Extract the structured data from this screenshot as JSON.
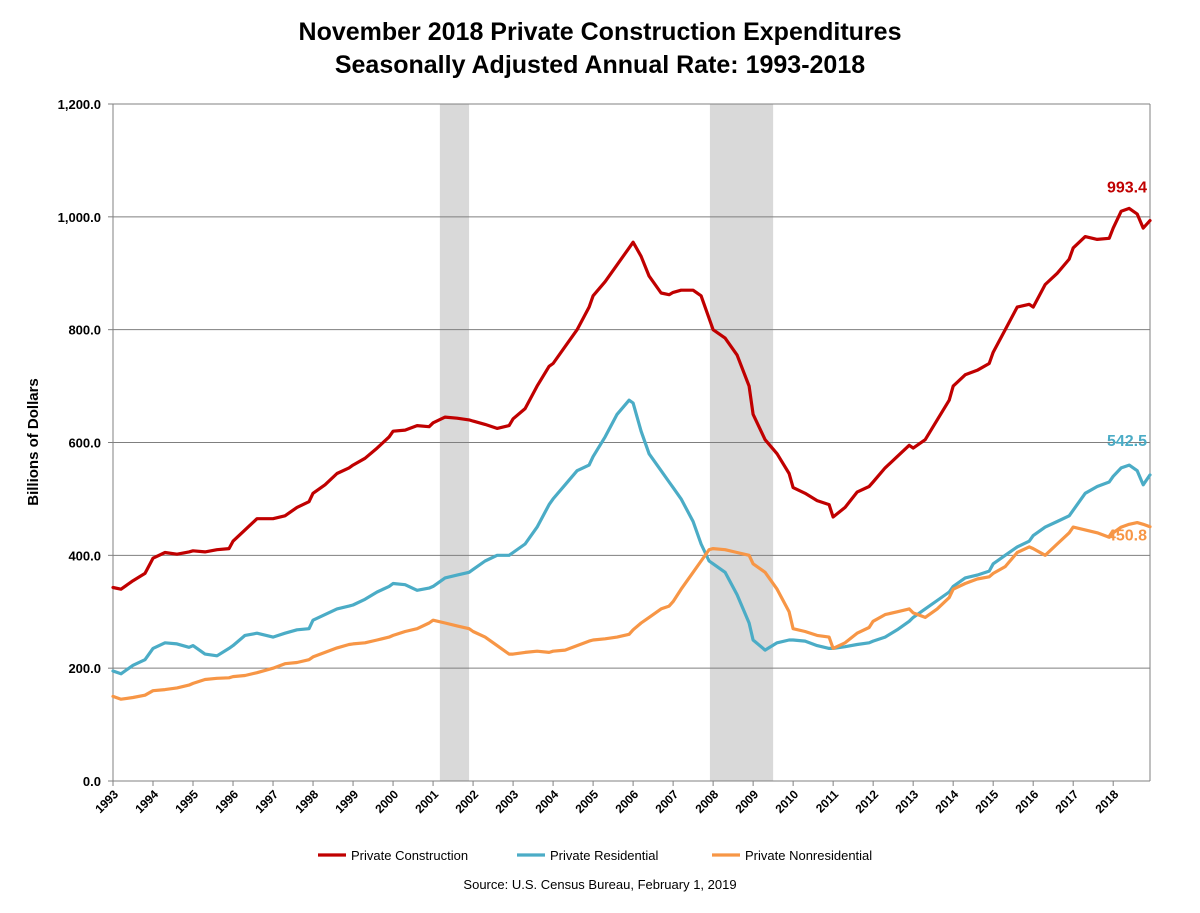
{
  "chart_data": {
    "type": "line",
    "title": "November 2018 Private Construction Expenditures",
    "subtitle": "Seasonally Adjusted Annual Rate: 1993-2018",
    "xlabel": "",
    "ylabel": "Billions of Dollars",
    "ylim": [
      0,
      1200
    ],
    "yticks": [
      "0.0",
      "200.0",
      "400.0",
      "600.0",
      "800.0",
      "1,000.0",
      "1,200.0"
    ],
    "ytick_values": [
      0,
      200,
      400,
      600,
      800,
      1000,
      1200
    ],
    "xlim": [
      1993.0,
      2018.92
    ],
    "xticks": [
      "1993",
      "1994",
      "1995",
      "1996",
      "1997",
      "1998",
      "1999",
      "2000",
      "2001",
      "2002",
      "2003",
      "2004",
      "2005",
      "2006",
      "2007",
      "2008",
      "2009",
      "2010",
      "2011",
      "2012",
      "2013",
      "2014",
      "2015",
      "2016",
      "2017",
      "2018"
    ],
    "grid": true,
    "legend_position": "bottom",
    "recessions": [
      {
        "start": 2001.17,
        "end": 2001.9
      },
      {
        "start": 2007.92,
        "end": 2009.5
      }
    ],
    "series": [
      {
        "name": "Private Construction",
        "color": "#C00000",
        "end_label": "993.4",
        "x": [
          1993.0,
          1993.2,
          1993.5,
          1993.8,
          1994.0,
          1994.3,
          1994.6,
          1994.9,
          1995.0,
          1995.3,
          1995.6,
          1995.9,
          1996.0,
          1996.3,
          1996.6,
          1997.0,
          1997.3,
          1997.6,
          1997.9,
          1998.0,
          1998.3,
          1998.6,
          1998.9,
          1999.0,
          1999.3,
          1999.6,
          1999.9,
          2000.0,
          2000.3,
          2000.6,
          2000.9,
          2001.0,
          2001.3,
          2001.6,
          2001.9,
          2002.0,
          2002.3,
          2002.6,
          2002.9,
          2003.0,
          2003.3,
          2003.6,
          2003.9,
          2004.0,
          2004.3,
          2004.6,
          2004.9,
          2005.0,
          2005.3,
          2005.6,
          2005.9,
          2006.0,
          2006.2,
          2006.4,
          2006.7,
          2006.9,
          2007.0,
          2007.2,
          2007.5,
          2007.7,
          2007.9,
          2008.0,
          2008.3,
          2008.6,
          2008.9,
          2009.0,
          2009.3,
          2009.6,
          2009.9,
          2010.0,
          2010.3,
          2010.6,
          2010.9,
          2011.0,
          2011.3,
          2011.6,
          2011.9,
          2012.0,
          2012.3,
          2012.6,
          2012.9,
          2013.0,
          2013.3,
          2013.6,
          2013.9,
          2014.0,
          2014.3,
          2014.6,
          2014.9,
          2015.0,
          2015.3,
          2015.6,
          2015.9,
          2016.0,
          2016.3,
          2016.6,
          2016.9,
          2017.0,
          2017.3,
          2017.6,
          2017.9,
          2018.0,
          2018.2,
          2018.4,
          2018.6,
          2018.75,
          2018.92
        ],
        "values": [
          343,
          340,
          355,
          368,
          395,
          405,
          402,
          406,
          408,
          406,
          410,
          412,
          425,
          445,
          465,
          465,
          470,
          485,
          495,
          510,
          525,
          545,
          555,
          560,
          572,
          590,
          610,
          620,
          622,
          630,
          628,
          635,
          645,
          643,
          640,
          638,
          632,
          625,
          630,
          642,
          660,
          700,
          735,
          740,
          770,
          800,
          840,
          860,
          885,
          915,
          945,
          955,
          930,
          895,
          865,
          862,
          866,
          870,
          870,
          860,
          820,
          800,
          785,
          755,
          700,
          650,
          605,
          580,
          545,
          520,
          510,
          497,
          490,
          468,
          485,
          512,
          522,
          530,
          555,
          575,
          595,
          590,
          605,
          640,
          675,
          700,
          720,
          728,
          740,
          760,
          800,
          840,
          845,
          840,
          880,
          900,
          925,
          945,
          965,
          960,
          962,
          980,
          1010,
          1015,
          1005,
          980,
          993.4
        ]
      },
      {
        "name": "Private Residential",
        "color": "#4BACC6",
        "end_label": "542.5",
        "x": [
          1993.0,
          1993.2,
          1993.5,
          1993.8,
          1994.0,
          1994.3,
          1994.6,
          1994.9,
          1995.0,
          1995.3,
          1995.6,
          1995.9,
          1996.0,
          1996.3,
          1996.6,
          1997.0,
          1997.3,
          1997.6,
          1997.9,
          1998.0,
          1998.3,
          1998.6,
          1998.9,
          1999.0,
          1999.3,
          1999.6,
          1999.9,
          2000.0,
          2000.3,
          2000.6,
          2000.9,
          2001.0,
          2001.3,
          2001.6,
          2001.9,
          2002.0,
          2002.3,
          2002.6,
          2002.9,
          2003.0,
          2003.3,
          2003.6,
          2003.9,
          2004.0,
          2004.3,
          2004.6,
          2004.9,
          2005.0,
          2005.3,
          2005.6,
          2005.9,
          2006.0,
          2006.2,
          2006.4,
          2006.7,
          2006.9,
          2007.0,
          2007.2,
          2007.5,
          2007.7,
          2007.9,
          2008.0,
          2008.3,
          2008.6,
          2008.9,
          2009.0,
          2009.3,
          2009.6,
          2009.9,
          2010.0,
          2010.3,
          2010.6,
          2010.9,
          2011.0,
          2011.3,
          2011.6,
          2011.9,
          2012.0,
          2012.3,
          2012.6,
          2012.9,
          2013.0,
          2013.3,
          2013.6,
          2013.9,
          2014.0,
          2014.3,
          2014.6,
          2014.9,
          2015.0,
          2015.3,
          2015.6,
          2015.9,
          2016.0,
          2016.3,
          2016.6,
          2016.9,
          2017.0,
          2017.3,
          2017.6,
          2017.9,
          2018.0,
          2018.2,
          2018.4,
          2018.6,
          2018.75,
          2018.92
        ],
        "values": [
          195,
          190,
          205,
          215,
          235,
          245,
          243,
          237,
          240,
          225,
          222,
          235,
          240,
          258,
          262,
          255,
          262,
          268,
          270,
          285,
          295,
          305,
          310,
          312,
          322,
          335,
          345,
          350,
          348,
          338,
          342,
          345,
          360,
          365,
          370,
          375,
          390,
          400,
          400,
          405,
          420,
          450,
          490,
          500,
          525,
          550,
          560,
          575,
          610,
          650,
          675,
          670,
          620,
          580,
          550,
          530,
          520,
          500,
          460,
          420,
          390,
          385,
          370,
          330,
          280,
          250,
          232,
          245,
          250,
          250,
          248,
          240,
          235,
          235,
          238,
          242,
          245,
          248,
          255,
          268,
          283,
          290,
          305,
          320,
          335,
          345,
          360,
          365,
          372,
          385,
          400,
          415,
          425,
          435,
          450,
          460,
          470,
          480,
          510,
          522,
          530,
          540,
          555,
          560,
          550,
          525,
          542.5
        ]
      },
      {
        "name": "Private Nonresidential",
        "color": "#F79646",
        "end_label": "450.8",
        "x": [
          1993.0,
          1993.2,
          1993.5,
          1993.8,
          1994.0,
          1994.3,
          1994.6,
          1994.9,
          1995.0,
          1995.3,
          1995.6,
          1995.9,
          1996.0,
          1996.3,
          1996.6,
          1997.0,
          1997.3,
          1997.6,
          1997.9,
          1998.0,
          1998.3,
          1998.6,
          1998.9,
          1999.0,
          1999.3,
          1999.6,
          1999.9,
          2000.0,
          2000.3,
          2000.6,
          2000.9,
          2001.0,
          2001.3,
          2001.6,
          2001.9,
          2002.0,
          2002.3,
          2002.6,
          2002.9,
          2003.0,
          2003.3,
          2003.6,
          2003.9,
          2004.0,
          2004.3,
          2004.6,
          2004.9,
          2005.0,
          2005.3,
          2005.6,
          2005.9,
          2006.0,
          2006.2,
          2006.4,
          2006.7,
          2006.9,
          2007.0,
          2007.2,
          2007.5,
          2007.7,
          2007.9,
          2008.0,
          2008.3,
          2008.6,
          2008.9,
          2009.0,
          2009.3,
          2009.6,
          2009.9,
          2010.0,
          2010.3,
          2010.6,
          2010.9,
          2011.0,
          2011.3,
          2011.6,
          2011.9,
          2012.0,
          2012.3,
          2012.6,
          2012.9,
          2013.0,
          2013.3,
          2013.6,
          2013.9,
          2014.0,
          2014.3,
          2014.6,
          2014.9,
          2015.0,
          2015.3,
          2015.6,
          2015.9,
          2016.0,
          2016.3,
          2016.6,
          2016.9,
          2017.0,
          2017.3,
          2017.6,
          2017.9,
          2018.0,
          2018.2,
          2018.4,
          2018.6,
          2018.75,
          2018.92
        ],
        "values": [
          150,
          145,
          148,
          152,
          160,
          162,
          165,
          170,
          173,
          180,
          182,
          183,
          185,
          187,
          192,
          200,
          208,
          210,
          215,
          220,
          228,
          236,
          242,
          243,
          245,
          250,
          255,
          258,
          265,
          270,
          280,
          285,
          280,
          275,
          270,
          265,
          255,
          240,
          225,
          225,
          228,
          230,
          228,
          230,
          232,
          240,
          248,
          250,
          252,
          255,
          260,
          268,
          280,
          290,
          305,
          310,
          318,
          340,
          370,
          390,
          410,
          412,
          410,
          405,
          400,
          385,
          370,
          340,
          300,
          270,
          265,
          258,
          255,
          235,
          245,
          262,
          272,
          283,
          295,
          300,
          305,
          298,
          290,
          305,
          325,
          340,
          350,
          358,
          362,
          368,
          380,
          405,
          415,
          412,
          400,
          420,
          440,
          450,
          445,
          440,
          432,
          440,
          450,
          455,
          458,
          455,
          450.8
        ]
      }
    ]
  },
  "source": "Source: U.S. Census Bureau, February 1, 2019"
}
